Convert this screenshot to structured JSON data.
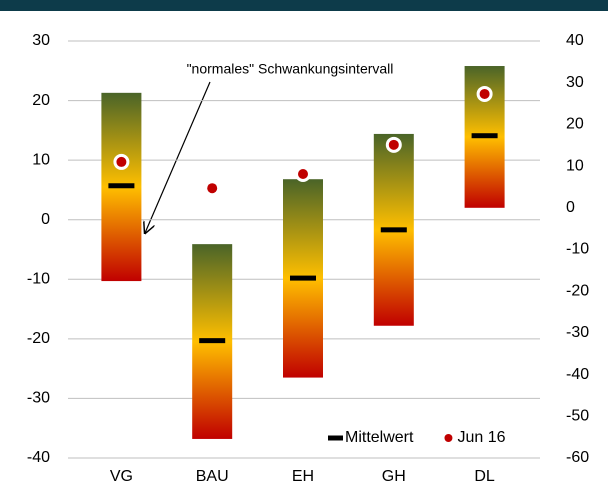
{
  "chart_data": {
    "type": "range_bar",
    "annotation": "\"normales\" Schwankungsintervall",
    "categories": [
      "VG",
      "BAU",
      "EH",
      "GH",
      "DL"
    ],
    "ranges": {
      "low": [
        -10.3,
        -36.8,
        -26.5,
        -17.8,
        2.0
      ],
      "high": [
        21.3,
        -4.1,
        6.8,
        14.4,
        25.8
      ]
    },
    "series": [
      {
        "name": "Mittelwert",
        "color": "#000000",
        "values": [
          5.7,
          -20.3,
          -9.8,
          -1.7,
          14.1
        ]
      },
      {
        "name": "Jun 16",
        "color": "#c00000",
        "axis": "y2",
        "values": [
          11.0,
          4.7,
          8.1,
          15.1,
          27.3
        ]
      }
    ],
    "ylim": [
      -40,
      30
    ],
    "yticks": [
      -40,
      -30,
      -20,
      -10,
      0,
      10,
      20,
      30
    ],
    "y2lim": [
      -60,
      40
    ],
    "y2ticks": [
      -60,
      -50,
      -40,
      -30,
      -20,
      -10,
      0,
      10,
      20,
      30,
      40
    ],
    "grid": true,
    "legend": "bottom-right"
  }
}
